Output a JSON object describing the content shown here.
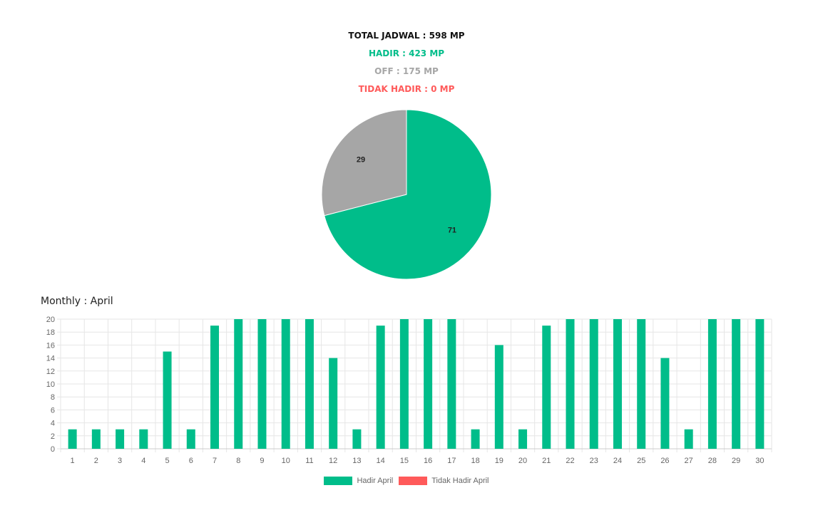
{
  "summary": {
    "total": "TOTAL JADWAL : 598 MP",
    "hadir": "HADIR : 423 MP",
    "off": "OFF : 175 MP",
    "tidak_hadir": "TIDAK HADIR : 0 MP"
  },
  "colors": {
    "hadir": "#00bd8a",
    "off": "#a6a6a6",
    "tidak_hadir": "#ff5a5a",
    "grid": "#e6e6e6",
    "tick": "#666666"
  },
  "monthly_title": "Monthly : April",
  "chart_data": [
    {
      "type": "pie",
      "slices": [
        {
          "label": "HADIR",
          "value": 71,
          "color": "#00bd8a"
        },
        {
          "label": "OFF",
          "value": 29,
          "color": "#a6a6a6"
        }
      ],
      "data_labels": [
        "71",
        "29"
      ]
    },
    {
      "type": "bar",
      "categories": [
        "1",
        "2",
        "3",
        "4",
        "5",
        "6",
        "7",
        "8",
        "9",
        "10",
        "11",
        "12",
        "13",
        "14",
        "15",
        "16",
        "17",
        "18",
        "19",
        "20",
        "21",
        "22",
        "23",
        "24",
        "25",
        "26",
        "27",
        "28",
        "29",
        "30"
      ],
      "series": [
        {
          "name": "Hadir April",
          "color": "#00bd8a",
          "values": [
            3,
            3,
            3,
            3,
            15,
            3,
            19,
            20,
            20,
            20,
            20,
            14,
            3,
            19,
            20,
            20,
            20,
            3,
            16,
            3,
            19,
            20,
            20,
            20,
            20,
            14,
            3,
            20,
            20,
            20
          ]
        },
        {
          "name": "Tidak Hadir April",
          "color": "#ff5a5a",
          "values": [
            0,
            0,
            0,
            0,
            0,
            0,
            0,
            0,
            0,
            0,
            0,
            0,
            0,
            0,
            0,
            0,
            0,
            0,
            0,
            0,
            0,
            0,
            0,
            0,
            0,
            0,
            0,
            0,
            0,
            0
          ]
        }
      ],
      "ylim": [
        0,
        20
      ],
      "yticks": [
        0,
        2,
        4,
        6,
        8,
        10,
        12,
        14,
        16,
        18,
        20
      ],
      "grid": true,
      "legend": "bottom"
    }
  ]
}
